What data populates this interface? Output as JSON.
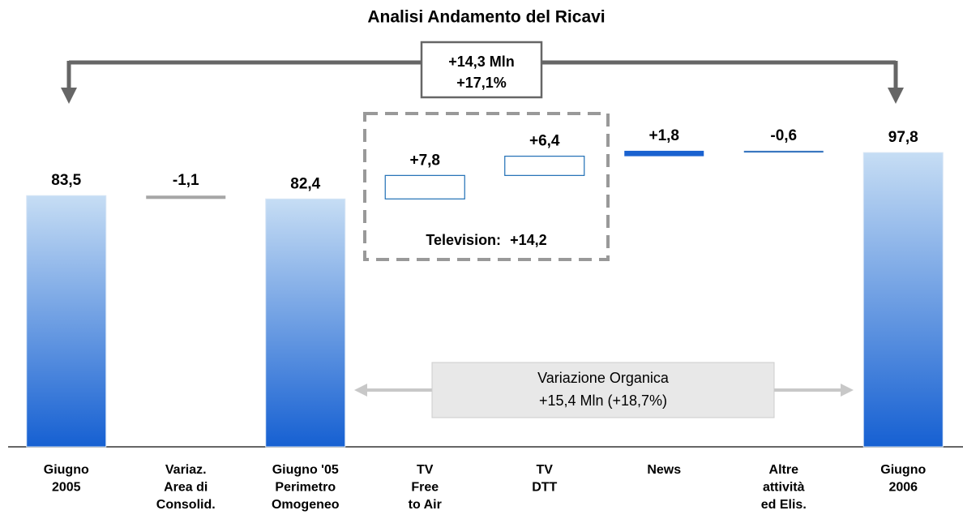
{
  "chart_data": {
    "type": "waterfall",
    "title": "Analisi Andamento del Ricavi",
    "categories": [
      [
        "Giugno",
        "2005"
      ],
      [
        "Variaz.",
        "Area di",
        "Consolid."
      ],
      [
        "Giugno '05",
        "Perimetro",
        "Omogeneo"
      ],
      [
        "TV",
        "Free",
        "to Air"
      ],
      [
        "TV",
        "DTT"
      ],
      [
        "News"
      ],
      [
        "Altre",
        "attività",
        "ed Elis."
      ],
      [
        "Giugno",
        "2006"
      ]
    ],
    "values": [
      83.5,
      -1.1,
      82.4,
      7.8,
      6.4,
      1.8,
      -0.6,
      97.8
    ],
    "value_labels": [
      "83,5",
      "-1,1",
      "82,4",
      "+7,8",
      "+6,4",
      "+1,8",
      "-0,6",
      "97,8"
    ],
    "measure": [
      "absolute",
      "relative",
      "absolute",
      "relative",
      "relative",
      "relative",
      "relative",
      "absolute"
    ],
    "bar_styles": [
      "gradient",
      "solid",
      "gradient",
      "outline",
      "outline",
      "solid",
      "solid",
      "gradient"
    ],
    "colors": [
      "#1a62d0",
      "#a6a6a6",
      "#1a62d0",
      "#1f6fb5",
      "#1f6fb5",
      "#1a62d0",
      "#3a78c0",
      "#1a62d0"
    ],
    "ylim": [
      0,
      100
    ],
    "annotations": {
      "total_change": [
        "+14,3 Mln",
        "+17,1%"
      ],
      "television": [
        "Television:",
        "+14,2"
      ],
      "organic": [
        "Variazione Organica",
        "+15,4 Mln (+18,7%)"
      ]
    }
  }
}
